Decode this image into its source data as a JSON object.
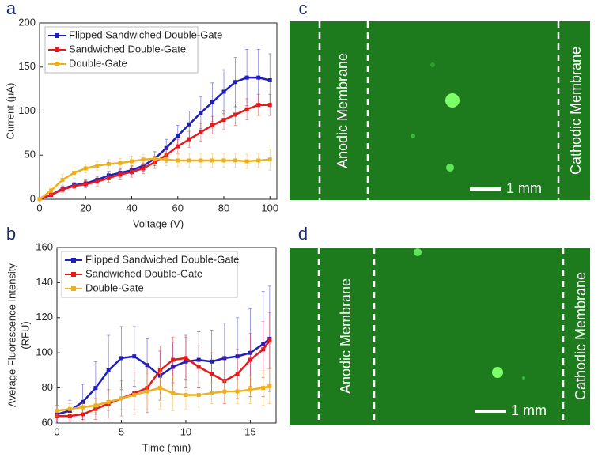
{
  "chart_data": [
    {
      "type": "line",
      "panel_label": "a",
      "xlabel": "Voltage (V)",
      "ylabel": "Current (μA)",
      "x": [
        0,
        5,
        10,
        15,
        20,
        25,
        30,
        35,
        40,
        45,
        50,
        55,
        60,
        65,
        70,
        75,
        80,
        85,
        90,
        95,
        100
      ],
      "xlim": [
        0,
        103
      ],
      "xticks": [
        0,
        20,
        40,
        60,
        80,
        100
      ],
      "ylim": [
        0,
        200
      ],
      "yticks": [
        0,
        50,
        100,
        150,
        200
      ],
      "grid": false,
      "legend": "upper-left",
      "series": [
        {
          "name": "Flipped Sandwiched Double-Gate",
          "color": "#1f1fbf",
          "values": [
            0,
            5,
            12,
            16,
            18,
            22,
            27,
            30,
            33,
            38,
            46,
            58,
            72,
            85,
            98,
            110,
            122,
            133,
            138,
            138,
            135
          ],
          "errors": [
            0,
            2,
            3,
            3,
            4,
            4,
            5,
            5,
            5,
            6,
            8,
            10,
            12,
            15,
            18,
            22,
            25,
            28,
            32,
            32,
            30
          ]
        },
        {
          "name": "Sandwiched Double-Gate",
          "color": "#e8191a",
          "values": [
            0,
            5,
            11,
            15,
            17,
            20,
            24,
            28,
            31,
            35,
            42,
            50,
            60,
            68,
            76,
            84,
            90,
            96,
            102,
            107,
            107
          ],
          "errors": [
            0,
            2,
            3,
            3,
            4,
            5,
            5,
            6,
            6,
            6,
            7,
            8,
            8,
            9,
            10,
            10,
            11,
            12,
            12,
            12,
            12
          ]
        },
        {
          "name": "Double-Gate",
          "color": "#edb120",
          "values": [
            0,
            10,
            22,
            30,
            35,
            38,
            40,
            41,
            43,
            45,
            46,
            45,
            44,
            44,
            44,
            44,
            44,
            44,
            43,
            44,
            45
          ],
          "errors": [
            0,
            4,
            6,
            6,
            5,
            5,
            5,
            5,
            6,
            6,
            7,
            7,
            7,
            8,
            8,
            8,
            8,
            8,
            8,
            8,
            12
          ]
        }
      ]
    },
    {
      "type": "line",
      "panel_label": "b",
      "xlabel": "Time (min)",
      "ylabel": [
        "Average Fluorescence Intensity",
        "(RFU)"
      ],
      "x": [
        0,
        1,
        2,
        3,
        4,
        5,
        6,
        7,
        8,
        9,
        10,
        11,
        12,
        13,
        14,
        15,
        16,
        16.5
      ],
      "xlim": [
        0,
        17
      ],
      "xticks": [
        0,
        5,
        10,
        15
      ],
      "ylim": [
        60,
        160
      ],
      "yticks": [
        60,
        80,
        100,
        120,
        140,
        160
      ],
      "grid": false,
      "legend": "upper-left",
      "series": [
        {
          "name": "Flipped Sandwiched Double-Gate",
          "color": "#1f1fbf",
          "values": [
            65,
            67,
            72,
            80,
            90,
            97,
            98,
            93,
            87,
            92,
            95,
            96,
            95,
            97,
            98,
            100,
            105,
            108
          ],
          "errors": [
            5,
            6,
            10,
            15,
            20,
            18,
            17,
            15,
            14,
            14,
            15,
            16,
            18,
            20,
            22,
            25,
            30,
            30
          ]
        },
        {
          "name": "Sandwiched Double-Gate",
          "color": "#e8191a",
          "values": [
            64,
            64,
            65,
            68,
            71,
            74,
            77,
            80,
            90,
            96,
            97,
            92,
            88,
            84,
            88,
            96,
            102,
            107
          ],
          "errors": [
            3,
            3,
            4,
            6,
            8,
            10,
            12,
            14,
            14,
            13,
            12,
            12,
            12,
            13,
            14,
            15,
            16,
            16
          ]
        },
        {
          "name": "Double-Gate",
          "color": "#edb120",
          "values": [
            67,
            68,
            69,
            70,
            72,
            74,
            76,
            78,
            80,
            77,
            76,
            76,
            77,
            78,
            78,
            79,
            80,
            81
          ],
          "errors": [
            3,
            3,
            3,
            4,
            5,
            6,
            8,
            10,
            12,
            10,
            8,
            7,
            6,
            6,
            7,
            8,
            10,
            10
          ]
        }
      ]
    }
  ],
  "images": [
    {
      "panel_label": "c",
      "left_label": "Anodic Membrane",
      "right_label": "Cathodic Membrane",
      "scale_bar": "1 mm"
    },
    {
      "panel_label": "d",
      "left_label": "Anodic Membrane",
      "right_label": "Cathodic Membrane",
      "scale_bar": "1 mm"
    }
  ]
}
